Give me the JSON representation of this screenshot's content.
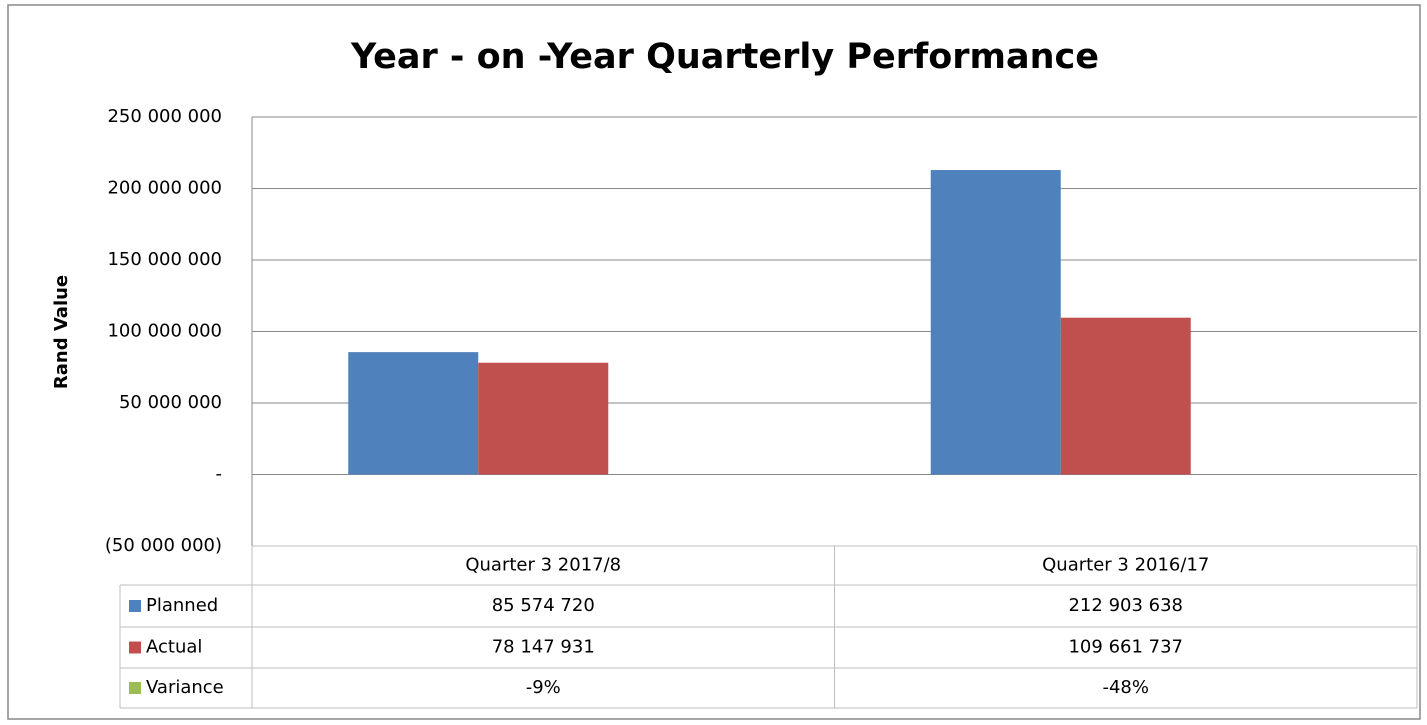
{
  "chart_data": {
    "type": "bar",
    "title": "Year - on -Year Quarterly Performance",
    "y_label": "Rand Value",
    "categories": [
      "Quarter 3 2017/8",
      "Quarter 3 2016/17"
    ],
    "series": [
      {
        "name": "Planned",
        "color": "#4f81bd",
        "values": [
          85574720,
          212903638
        ],
        "value_labels": [
          "85 574 720",
          "212 903 638"
        ]
      },
      {
        "name": "Actual",
        "color": "#c0504d",
        "values": [
          78147931,
          109661737
        ],
        "value_labels": [
          "78 147 931",
          "109 661 737"
        ]
      },
      {
        "name": "Variance",
        "color": "#9bbb59",
        "values": [
          -9,
          -48
        ],
        "value_labels": [
          "-9%",
          "-48%"
        ]
      }
    ],
    "ylim": [
      -50000000,
      250000000
    ],
    "yticks": [
      {
        "value": -50000000,
        "label": "(50 000 000)"
      },
      {
        "value": 0,
        "label": "-"
      },
      {
        "value": 50000000,
        "label": "50 000 000"
      },
      {
        "value": 100000000,
        "label": "100 000 000"
      },
      {
        "value": 150000000,
        "label": "150 000 000"
      },
      {
        "value": 200000000,
        "label": "200 000 000"
      },
      {
        "value": 250000000,
        "label": "250 000 000"
      }
    ],
    "grid": true
  }
}
